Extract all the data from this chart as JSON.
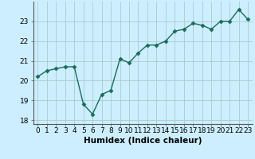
{
  "x": [
    0,
    1,
    2,
    3,
    4,
    5,
    6,
    7,
    8,
    9,
    10,
    11,
    12,
    13,
    14,
    15,
    16,
    17,
    18,
    19,
    20,
    21,
    22,
    23
  ],
  "y": [
    20.2,
    20.5,
    20.6,
    20.7,
    20.7,
    18.8,
    18.3,
    19.3,
    19.5,
    21.1,
    20.9,
    21.4,
    21.8,
    21.8,
    22.0,
    22.5,
    22.6,
    22.9,
    22.8,
    22.6,
    23.0,
    23.0,
    23.6,
    23.1
  ],
  "line_color": "#1a6b5a",
  "marker": "D",
  "markersize": 2.5,
  "linewidth": 1.0,
  "xlabel": "Humidex (Indice chaleur)",
  "ylim": [
    17.8,
    24.0
  ],
  "xlim": [
    -0.5,
    23.5
  ],
  "yticks": [
    18,
    19,
    20,
    21,
    22,
    23
  ],
  "xticks": [
    0,
    1,
    2,
    3,
    4,
    5,
    6,
    7,
    8,
    9,
    10,
    11,
    12,
    13,
    14,
    15,
    16,
    17,
    18,
    19,
    20,
    21,
    22,
    23
  ],
  "bg_color": "#cceeff",
  "grid_color": "#aacccc",
  "tick_fontsize": 6.5,
  "xlabel_fontsize": 7.5
}
